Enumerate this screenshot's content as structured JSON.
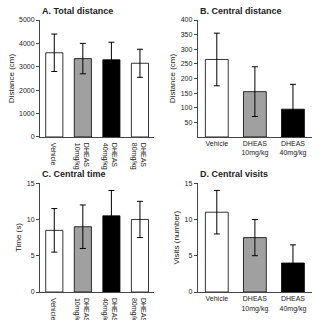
{
  "chart_data": [
    {
      "type": "bar",
      "title": "A. Total distance",
      "ylabel": "Distance (cm)",
      "categories": [
        "Vehicle",
        "DHEAS\n10mg/kg",
        "DHEAS\n40mg/kg",
        "DHEAS\n80mg/kg"
      ],
      "values": [
        3600,
        3350,
        3300,
        3150
      ],
      "errors": [
        800,
        650,
        750,
        600
      ],
      "colors": [
        "white",
        "#a0a0a0",
        "black",
        "white"
      ],
      "ylim": [
        0,
        5000
      ],
      "yticks": [
        0,
        1000,
        2000,
        3000,
        4000,
        5000
      ],
      "grid": false
    },
    {
      "type": "bar",
      "title": "B. Central distance",
      "ylabel": "Distance (cm)",
      "categories": [
        "Vehicle",
        "DHEAS\n10mg/kg",
        "DHEAS\n40mg/kg"
      ],
      "values": [
        265,
        155,
        95
      ],
      "errors": [
        90,
        85,
        85
      ],
      "colors": [
        "white",
        "#a0a0a0",
        "black"
      ],
      "ylim": [
        0,
        400
      ],
      "yticks": [
        50,
        100,
        150,
        200,
        250,
        300,
        350,
        400
      ],
      "grid": false
    },
    {
      "type": "bar",
      "title": "C. Central time",
      "ylabel": "Time (s)",
      "categories": [
        "Vehicle",
        "DHEAS\n10mg/kg",
        "DHEAS\n40mg/kg",
        "DHEAS\n80mg/kg"
      ],
      "values": [
        8.5,
        9.0,
        10.5,
        10.0
      ],
      "errors": [
        3.0,
        3.0,
        3.5,
        2.5
      ],
      "colors": [
        "white",
        "#a0a0a0",
        "black",
        "white"
      ],
      "ylim": [
        0,
        15
      ],
      "yticks": [
        0,
        5,
        10,
        15
      ],
      "grid": false
    },
    {
      "type": "bar",
      "title": "D. Central visits",
      "ylabel": "Visits (number)",
      "categories": [
        "Vehicle",
        "DHEAS\n10mg/kg",
        "DHEAS\n40mg/kg"
      ],
      "values": [
        11,
        7.5,
        4
      ],
      "errors": [
        3,
        2.5,
        2.5
      ],
      "colors": [
        "white",
        "#a0a0a0",
        "black"
      ],
      "ylim": [
        0,
        15
      ],
      "yticks": [
        0,
        5,
        10,
        15
      ],
      "grid": false
    }
  ]
}
